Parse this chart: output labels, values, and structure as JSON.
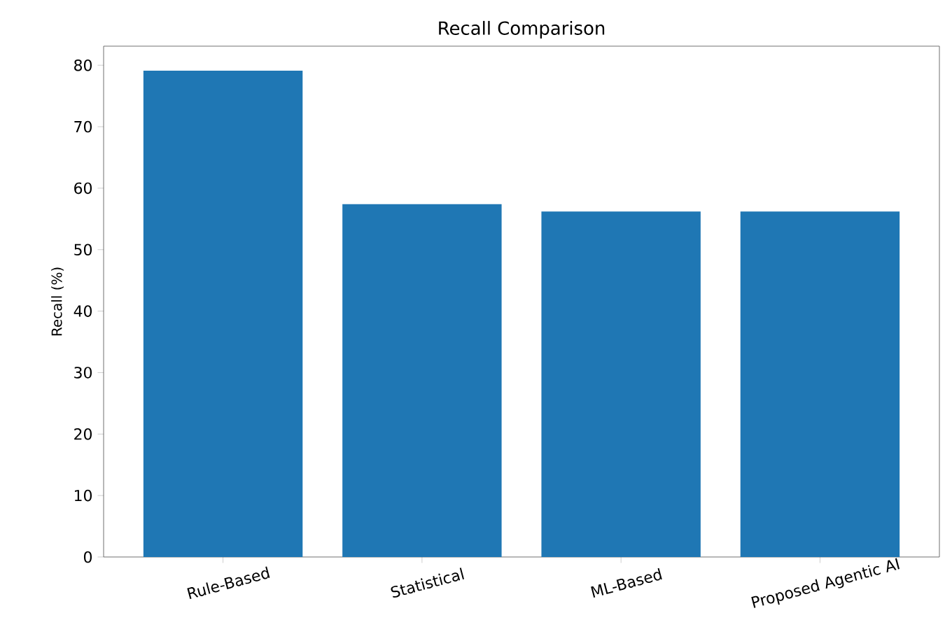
{
  "chart_data": {
    "type": "bar",
    "title": "Recall Comparison",
    "ylabel": "Recall (%)",
    "categories": [
      "Rule-Based",
      "Statistical",
      "ML-Based",
      "Proposed Agentic AI"
    ],
    "values": [
      79.1,
      57.4,
      56.2,
      56.2
    ],
    "color": "#1f77b4",
    "ylim": [
      0,
      83.1
    ],
    "yticks": [
      0,
      10,
      20,
      30,
      40,
      50,
      60,
      70,
      80
    ],
    "grid": false
  }
}
